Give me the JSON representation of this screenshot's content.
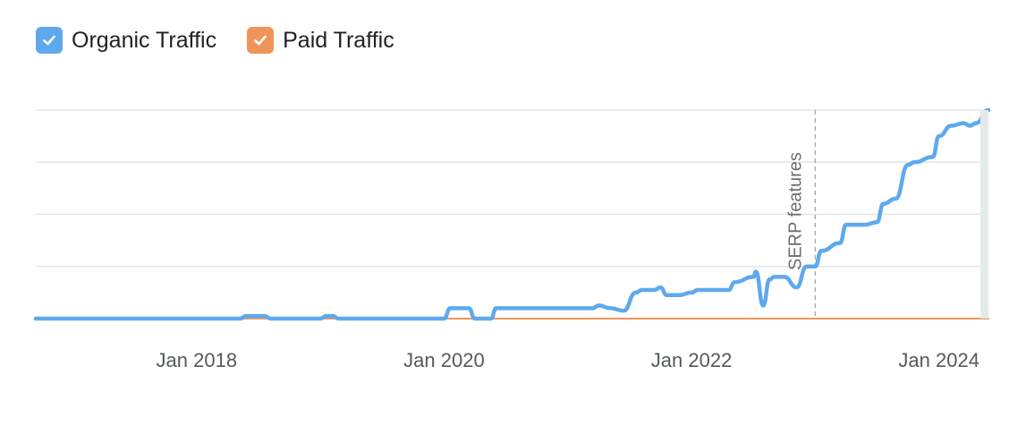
{
  "legend": {
    "items": [
      {
        "label": "Organic Traffic",
        "color": "#5ea9ee",
        "checked": true,
        "icon": "check-icon"
      },
      {
        "label": "Paid Traffic",
        "color": "#f0955a",
        "checked": true,
        "icon": "check-icon"
      }
    ]
  },
  "chart_data": {
    "type": "line",
    "x_tick_labels": [
      "Jan 2018",
      "Jan 2020",
      "Jan 2022",
      "Jan 2024"
    ],
    "x_tick_values": [
      2018,
      2020,
      2022,
      2024
    ],
    "xlim": [
      2016.7,
      2024.4
    ],
    "ylim": [
      0,
      4
    ],
    "grid": true,
    "y_tick_labels_shown": false,
    "annotations": [
      {
        "label": "SERP features",
        "x": 2023.0
      }
    ],
    "series": [
      {
        "name": "Organic Traffic",
        "color": "#5ea9ee",
        "x": [
          2016.7,
          2018.35,
          2018.4,
          2018.55,
          2018.6,
          2019.0,
          2019.05,
          2019.1,
          2019.15,
          2019.6,
          2019.9,
          2020.0,
          2020.05,
          2020.2,
          2020.25,
          2020.38,
          2020.42,
          2020.5,
          2020.55,
          2021.0,
          2021.2,
          2021.25,
          2021.35,
          2021.45,
          2021.55,
          2021.6,
          2021.7,
          2021.75,
          2021.8,
          2021.9,
          2022.0,
          2022.05,
          2022.3,
          2022.35,
          2022.5,
          2022.52,
          2022.58,
          2022.63,
          2022.67,
          2022.75,
          2022.85,
          2022.93,
          2023.0,
          2023.05,
          2023.2,
          2023.25,
          2023.4,
          2023.5,
          2023.55,
          2023.65,
          2023.75,
          2023.8,
          2023.95,
          2024.0,
          2024.1,
          2024.2,
          2024.25,
          2024.3,
          2024.4
        ],
        "y": [
          0.0,
          0.0,
          0.05,
          0.05,
          0.0,
          0.0,
          0.05,
          0.05,
          0.0,
          0.0,
          0.0,
          0.0,
          0.2,
          0.2,
          0.0,
          0.0,
          0.2,
          0.2,
          0.2,
          0.2,
          0.2,
          0.25,
          0.2,
          0.15,
          0.5,
          0.55,
          0.55,
          0.6,
          0.45,
          0.45,
          0.5,
          0.55,
          0.55,
          0.7,
          0.8,
          0.9,
          0.25,
          0.75,
          0.8,
          0.8,
          0.6,
          1.0,
          1.0,
          1.3,
          1.45,
          1.8,
          1.8,
          1.85,
          2.2,
          2.3,
          2.95,
          3.0,
          3.1,
          3.5,
          3.7,
          3.75,
          3.7,
          3.75,
          4.0
        ]
      },
      {
        "name": "Paid Traffic",
        "color": "#f0955a",
        "x": [
          2016.7,
          2024.4
        ],
        "y": [
          0.0,
          0.0
        ]
      }
    ]
  }
}
